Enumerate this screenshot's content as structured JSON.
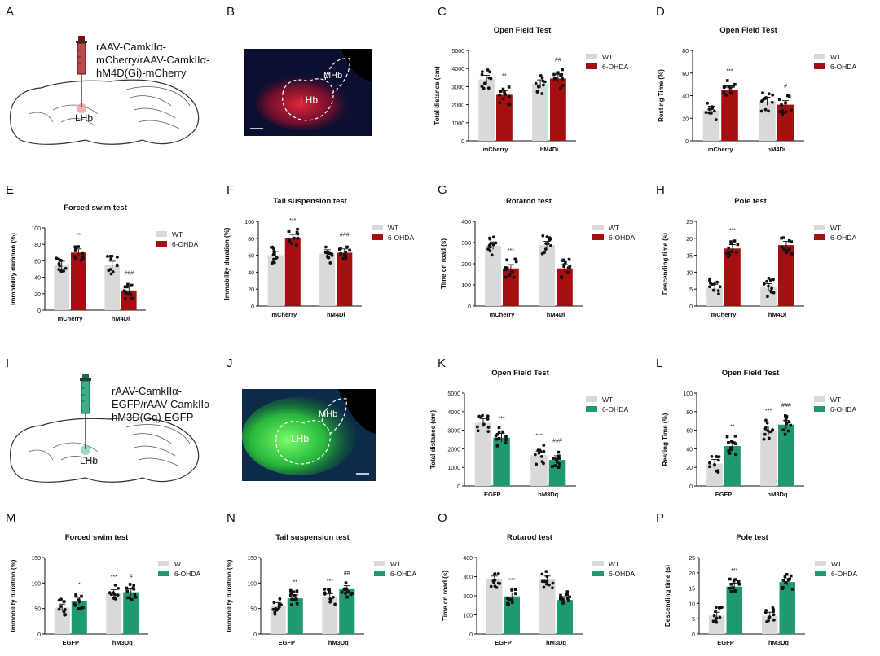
{
  "figure": {
    "letters": [
      "A",
      "B",
      "C",
      "D",
      "E",
      "F",
      "G",
      "H",
      "I",
      "J",
      "K",
      "L",
      "M",
      "N",
      "O",
      "P"
    ],
    "schematic_top": {
      "line1": "rAAV-CamkIIα-",
      "line2": "mCherry/rAAV-CamkIIα-",
      "line3": "hM4D(Gi)-mCherry",
      "region": "LHb"
    },
    "schematic_bottom": {
      "line1": "rAAV-CamkIIα-",
      "line2": "EGFP/rAAV-CamkIIα-",
      "line3": "hM3D(Gq)-EGFP",
      "region": "LHb"
    },
    "micro_top": {
      "label_mhb": "MHb",
      "label_lhb": "LHb"
    },
    "micro_bottom": {
      "label_mhb": "MHb",
      "label_lhb": "LHb"
    },
    "colors": {
      "wt": "#d9d9d9",
      "ohda_red": "#a50f0f",
      "ohda_green": "#1f9a6e"
    }
  },
  "chart_data": [
    {
      "letter": "C",
      "type": "bar",
      "title": "Open Field Test",
      "ylabel": "Total  distance (cm)",
      "ylim": [
        0,
        5000
      ],
      "yticks": [
        0,
        1000,
        2000,
        3000,
        4000,
        5000
      ],
      "categories": [
        "mCherry",
        "hM4Di"
      ],
      "legend": [
        "WT",
        "6-OHDA"
      ],
      "accent": "red",
      "series": [
        {
          "name": "WT",
          "values": [
            3400,
            3150
          ]
        },
        {
          "name": "6-OHDA",
          "values": [
            2550,
            3450
          ]
        }
      ],
      "annotations": [
        "",
        "**",
        "",
        "##"
      ]
    },
    {
      "letter": "D",
      "type": "bar",
      "title": "Open Field Test",
      "ylabel": "Resting Time (%)",
      "ylim": [
        0,
        80
      ],
      "yticks": [
        0,
        20,
        40,
        60,
        80
      ],
      "categories": [
        "mCherry",
        "hM4Di"
      ],
      "legend": [
        "WT",
        "6-OHDA"
      ],
      "accent": "red",
      "series": [
        {
          "name": "WT",
          "values": [
            27,
            35
          ]
        },
        {
          "name": "6-OHDA",
          "values": [
            45,
            32
          ]
        }
      ],
      "annotations": [
        "",
        "***",
        "",
        "#"
      ]
    },
    {
      "letter": "E",
      "type": "bar",
      "title": "Forced swim test",
      "ylabel": "Immobility duration  (%)",
      "ylim": [
        0,
        100
      ],
      "yticks": [
        0,
        20,
        40,
        60,
        80,
        100
      ],
      "categories": [
        "mCherry",
        "hM4Di"
      ],
      "legend": [
        "WT",
        "6-OHDA"
      ],
      "accent": "red",
      "series": [
        {
          "name": "WT",
          "values": [
            55,
            55
          ]
        },
        {
          "name": "6-OHDA",
          "values": [
            70,
            24
          ]
        }
      ],
      "annotations": [
        "",
        "**",
        "",
        "###"
      ]
    },
    {
      "letter": "F",
      "type": "bar",
      "title": "Tail suspension test",
      "ylabel": "Immobility duration (%)",
      "ylim": [
        0,
        100
      ],
      "yticks": [
        0,
        20,
        40,
        60,
        80,
        100
      ],
      "categories": [
        "mCherry",
        "hM4Di"
      ],
      "legend": [
        "WT",
        "6-OHDA"
      ],
      "accent": "red",
      "series": [
        {
          "name": "WT",
          "values": [
            60,
            62
          ]
        },
        {
          "name": "6-OHDA",
          "values": [
            80,
            63
          ]
        }
      ],
      "annotations": [
        "",
        "***",
        "",
        "###"
      ]
    },
    {
      "letter": "G",
      "type": "bar",
      "title": "Rotarod test",
      "ylabel": "Time on road (s)",
      "ylim": [
        0,
        400
      ],
      "yticks": [
        0,
        100,
        200,
        300,
        400
      ],
      "categories": [
        "mCherry",
        "hM4Di"
      ],
      "legend": [
        "WT",
        "6-OHDA"
      ],
      "accent": "red",
      "series": [
        {
          "name": "WT",
          "values": [
            285,
            288
          ]
        },
        {
          "name": "6-OHDA",
          "values": [
            178,
            178
          ]
        }
      ],
      "annotations": [
        "",
        "***",
        "",
        ""
      ]
    },
    {
      "letter": "H",
      "type": "bar",
      "title": "Pole test",
      "ylabel": "Descending time (s)",
      "ylim": [
        0,
        25
      ],
      "yticks": [
        0,
        5,
        10,
        15,
        20,
        25
      ],
      "categories": [
        "mCherry",
        "hM4Di"
      ],
      "legend": [
        "WT",
        "6-OHDA"
      ],
      "accent": "red",
      "series": [
        {
          "name": "WT",
          "values": [
            5.3,
            5.5
          ]
        },
        {
          "name": "6-OHDA",
          "values": [
            17,
            18
          ]
        }
      ],
      "annotations": [
        "",
        "***",
        "",
        ""
      ]
    },
    {
      "letter": "K",
      "type": "bar",
      "title": "Open Field Test",
      "ylabel": "Total distance (cm)",
      "ylim": [
        0,
        5000
      ],
      "yticks": [
        0,
        1000,
        2000,
        3000,
        4000,
        5000
      ],
      "categories": [
        "EGFP",
        "hM3Dq"
      ],
      "legend": [
        "WT",
        "6-OHDA"
      ],
      "accent": "green",
      "series": [
        {
          "name": "WT",
          "values": [
            3400,
            1650
          ]
        },
        {
          "name": "6-OHDA",
          "values": [
            2600,
            1400
          ]
        }
      ],
      "annotations": [
        "",
        "***",
        "***",
        "###"
      ]
    },
    {
      "letter": "L",
      "type": "bar",
      "title": "Open Field Test",
      "ylabel": "Resting Time (%)",
      "ylim": [
        0,
        100
      ],
      "yticks": [
        0,
        20,
        40,
        60,
        80,
        100
      ],
      "categories": [
        "EGFP",
        "hM3Dq"
      ],
      "legend": [
        "WT",
        "6-OHDA"
      ],
      "accent": "green",
      "series": [
        {
          "name": "WT",
          "values": [
            24,
            60
          ]
        },
        {
          "name": "6-OHDA",
          "values": [
            43,
            66
          ]
        }
      ],
      "annotations": [
        "",
        "**",
        "***",
        "###"
      ]
    },
    {
      "letter": "M",
      "type": "bar",
      "title": "Forced swim test",
      "ylabel": "Immobility duration (%)",
      "ylim": [
        0,
        150
      ],
      "yticks": [
        0,
        50,
        100,
        150
      ],
      "categories": [
        "EGFP",
        "hM3Dq"
      ],
      "legend": [
        "WT",
        "6-OHDA"
      ],
      "accent": "green",
      "series": [
        {
          "name": "WT",
          "values": [
            52,
            80
          ]
        },
        {
          "name": "6-OHDA",
          "values": [
            65,
            82
          ]
        }
      ],
      "annotations": [
        "",
        "*",
        "***",
        "#"
      ]
    },
    {
      "letter": "N",
      "type": "bar",
      "title": "Tail suspension test",
      "ylabel": "Immobility duration (%)",
      "ylim": [
        0,
        150
      ],
      "yticks": [
        0,
        50,
        100,
        150
      ],
      "categories": [
        "EGFP",
        "hM3Dq"
      ],
      "legend": [
        "WT",
        "6-OHDA"
      ],
      "accent": "green",
      "series": [
        {
          "name": "WT",
          "values": [
            55,
            72
          ]
        },
        {
          "name": "6-OHDA",
          "values": [
            70,
            88
          ]
        }
      ],
      "annotations": [
        "",
        "**",
        "***",
        "##"
      ]
    },
    {
      "letter": "O",
      "type": "bar",
      "title": "Rotarod test",
      "ylabel": "Time on road (s)",
      "ylim": [
        0,
        400
      ],
      "yticks": [
        0,
        100,
        200,
        300,
        400
      ],
      "categories": [
        "EGFP",
        "hM3Dq"
      ],
      "legend": [
        "WT",
        "6-OHDA"
      ],
      "accent": "green",
      "series": [
        {
          "name": "WT",
          "values": [
            285,
            285
          ]
        },
        {
          "name": "6-OHDA",
          "values": [
            197,
            178
          ]
        }
      ],
      "annotations": [
        "",
        "***",
        "",
        ""
      ]
    },
    {
      "letter": "P",
      "type": "bar",
      "title": "Pole test",
      "ylabel": "Descending time (s)",
      "ylim": [
        0,
        25
      ],
      "yticks": [
        0,
        5,
        10,
        15,
        20,
        25
      ],
      "categories": [
        "EGFP",
        "hM3Dq"
      ],
      "legend": [
        "WT",
        "6-OHDA"
      ],
      "accent": "green",
      "series": [
        {
          "name": "WT",
          "values": [
            6,
            6
          ]
        },
        {
          "name": "6-OHDA",
          "values": [
            15.5,
            17
          ]
        }
      ],
      "annotations": [
        "",
        "***",
        "",
        ""
      ]
    }
  ]
}
